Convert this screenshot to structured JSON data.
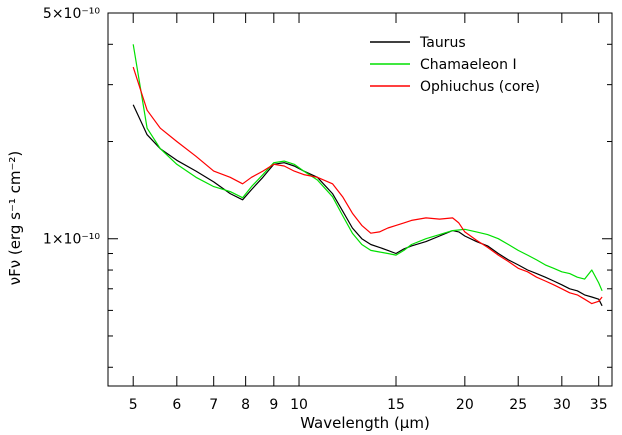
{
  "chart_data": {
    "type": "line",
    "title": "",
    "xlabel": "Wavelength (μm)",
    "ylabel": "νFν (erg s⁻¹ cm⁻²)",
    "x_scale": "log",
    "y_scale": "log",
    "xlim": [
      4.5,
      37
    ],
    "ylim": [
      3.5e-11,
      5e-10
    ],
    "x_ticks": [
      5,
      6,
      7,
      8,
      9,
      10,
      15,
      20,
      25,
      30,
      35
    ],
    "x_tick_labels": [
      "5",
      "6",
      "7",
      "8",
      "9",
      "10",
      "15",
      "20",
      "25",
      "30",
      "35"
    ],
    "y_major_ticks": [
      1e-10,
      5e-10
    ],
    "y_tick_labels": [
      "1×10⁻¹⁰",
      "5×10⁻¹⁰"
    ],
    "legend_position": "top-right",
    "series": [
      {
        "name": "Taurus",
        "color": "#000000",
        "x": [
          5.0,
          5.3,
          5.6,
          6.0,
          6.5,
          7.0,
          7.5,
          7.9,
          8.2,
          8.6,
          9.0,
          9.4,
          9.8,
          10.2,
          10.8,
          11.5,
          12.0,
          12.5,
          13.0,
          13.5,
          14.0,
          14.5,
          15.0,
          15.5,
          16.0,
          17.0,
          18.0,
          19.0,
          19.5,
          20.0,
          21.0,
          22.0,
          23.0,
          24.0,
          25.0,
          26.0,
          27.0,
          28.0,
          29.0,
          30.0,
          31.0,
          32.0,
          33.0,
          34.0,
          35.0,
          35.5
        ],
        "y": [
          2.6e-10,
          2.1e-10,
          1.9e-10,
          1.75e-10,
          1.62e-10,
          1.5e-10,
          1.38e-10,
          1.32e-10,
          1.42e-10,
          1.55e-10,
          1.7e-10,
          1.72e-10,
          1.68e-10,
          1.62e-10,
          1.55e-10,
          1.38e-10,
          1.22e-10,
          1.08e-10,
          1e-10,
          9.6e-11,
          9.4e-11,
          9.2e-11,
          9e-11,
          9.3e-11,
          9.5e-11,
          9.8e-11,
          1.02e-10,
          1.06e-10,
          1.05e-10,
          1.02e-10,
          9.8e-11,
          9.5e-11,
          9e-11,
          8.6e-11,
          8.3e-11,
          8e-11,
          7.8e-11,
          7.6e-11,
          7.4e-11,
          7.2e-11,
          7e-11,
          6.9e-11,
          6.7e-11,
          6.6e-11,
          6.5e-11,
          6.2e-11
        ]
      },
      {
        "name": "Chamaeleon I",
        "color": "#00e000",
        "x": [
          5.0,
          5.3,
          5.6,
          6.0,
          6.5,
          7.0,
          7.5,
          7.9,
          8.2,
          8.6,
          9.0,
          9.4,
          9.8,
          10.2,
          10.8,
          11.5,
          12.0,
          12.5,
          13.0,
          13.5,
          14.0,
          14.5,
          15.0,
          15.5,
          16.0,
          17.0,
          18.0,
          19.0,
          20.0,
          21.0,
          22.0,
          23.0,
          24.0,
          25.0,
          26.0,
          27.0,
          28.0,
          29.0,
          30.0,
          31.0,
          32.0,
          33.0,
          34.0,
          35.0,
          35.5
        ],
        "y": [
          4e-10,
          2.2e-10,
          1.9e-10,
          1.7e-10,
          1.55e-10,
          1.45e-10,
          1.4e-10,
          1.34e-10,
          1.45e-10,
          1.58e-10,
          1.72e-10,
          1.74e-10,
          1.7e-10,
          1.62e-10,
          1.52e-10,
          1.35e-10,
          1.18e-10,
          1.04e-10,
          9.6e-11,
          9.2e-11,
          9.1e-11,
          9e-11,
          8.9e-11,
          9.2e-11,
          9.6e-11,
          1e-10,
          1.03e-10,
          1.06e-10,
          1.07e-10,
          1.05e-10,
          1.03e-10,
          1e-10,
          9.6e-11,
          9.2e-11,
          8.9e-11,
          8.6e-11,
          8.3e-11,
          8.1e-11,
          7.9e-11,
          7.8e-11,
          7.6e-11,
          7.5e-11,
          8e-11,
          7.3e-11,
          6.9e-11
        ]
      },
      {
        "name": "Ophiuchus (core)",
        "color": "#ff0000",
        "x": [
          5.0,
          5.3,
          5.6,
          6.0,
          6.5,
          7.0,
          7.5,
          7.9,
          8.2,
          8.6,
          9.0,
          9.4,
          9.8,
          10.2,
          10.8,
          11.5,
          12.0,
          12.5,
          13.0,
          13.5,
          14.0,
          14.5,
          15.0,
          15.5,
          16.0,
          17.0,
          18.0,
          19.0,
          19.5,
          20.0,
          21.0,
          22.0,
          23.0,
          24.0,
          25.0,
          26.0,
          27.0,
          28.0,
          29.0,
          30.0,
          31.0,
          32.0,
          33.0,
          34.0,
          35.0,
          35.5
        ],
        "y": [
          3.4e-10,
          2.5e-10,
          2.2e-10,
          2e-10,
          1.8e-10,
          1.62e-10,
          1.55e-10,
          1.48e-10,
          1.55e-10,
          1.62e-10,
          1.7e-10,
          1.68e-10,
          1.62e-10,
          1.58e-10,
          1.55e-10,
          1.48e-10,
          1.35e-10,
          1.2e-10,
          1.1e-10,
          1.04e-10,
          1.05e-10,
          1.08e-10,
          1.1e-10,
          1.12e-10,
          1.14e-10,
          1.16e-10,
          1.15e-10,
          1.16e-10,
          1.12e-10,
          1.05e-10,
          9.9e-11,
          9.4e-11,
          8.9e-11,
          8.5e-11,
          8.1e-11,
          7.9e-11,
          7.6e-11,
          7.4e-11,
          7.2e-11,
          7e-11,
          6.8e-11,
          6.7e-11,
          6.5e-11,
          6.3e-11,
          6.4e-11,
          6.6e-11
        ]
      }
    ]
  }
}
